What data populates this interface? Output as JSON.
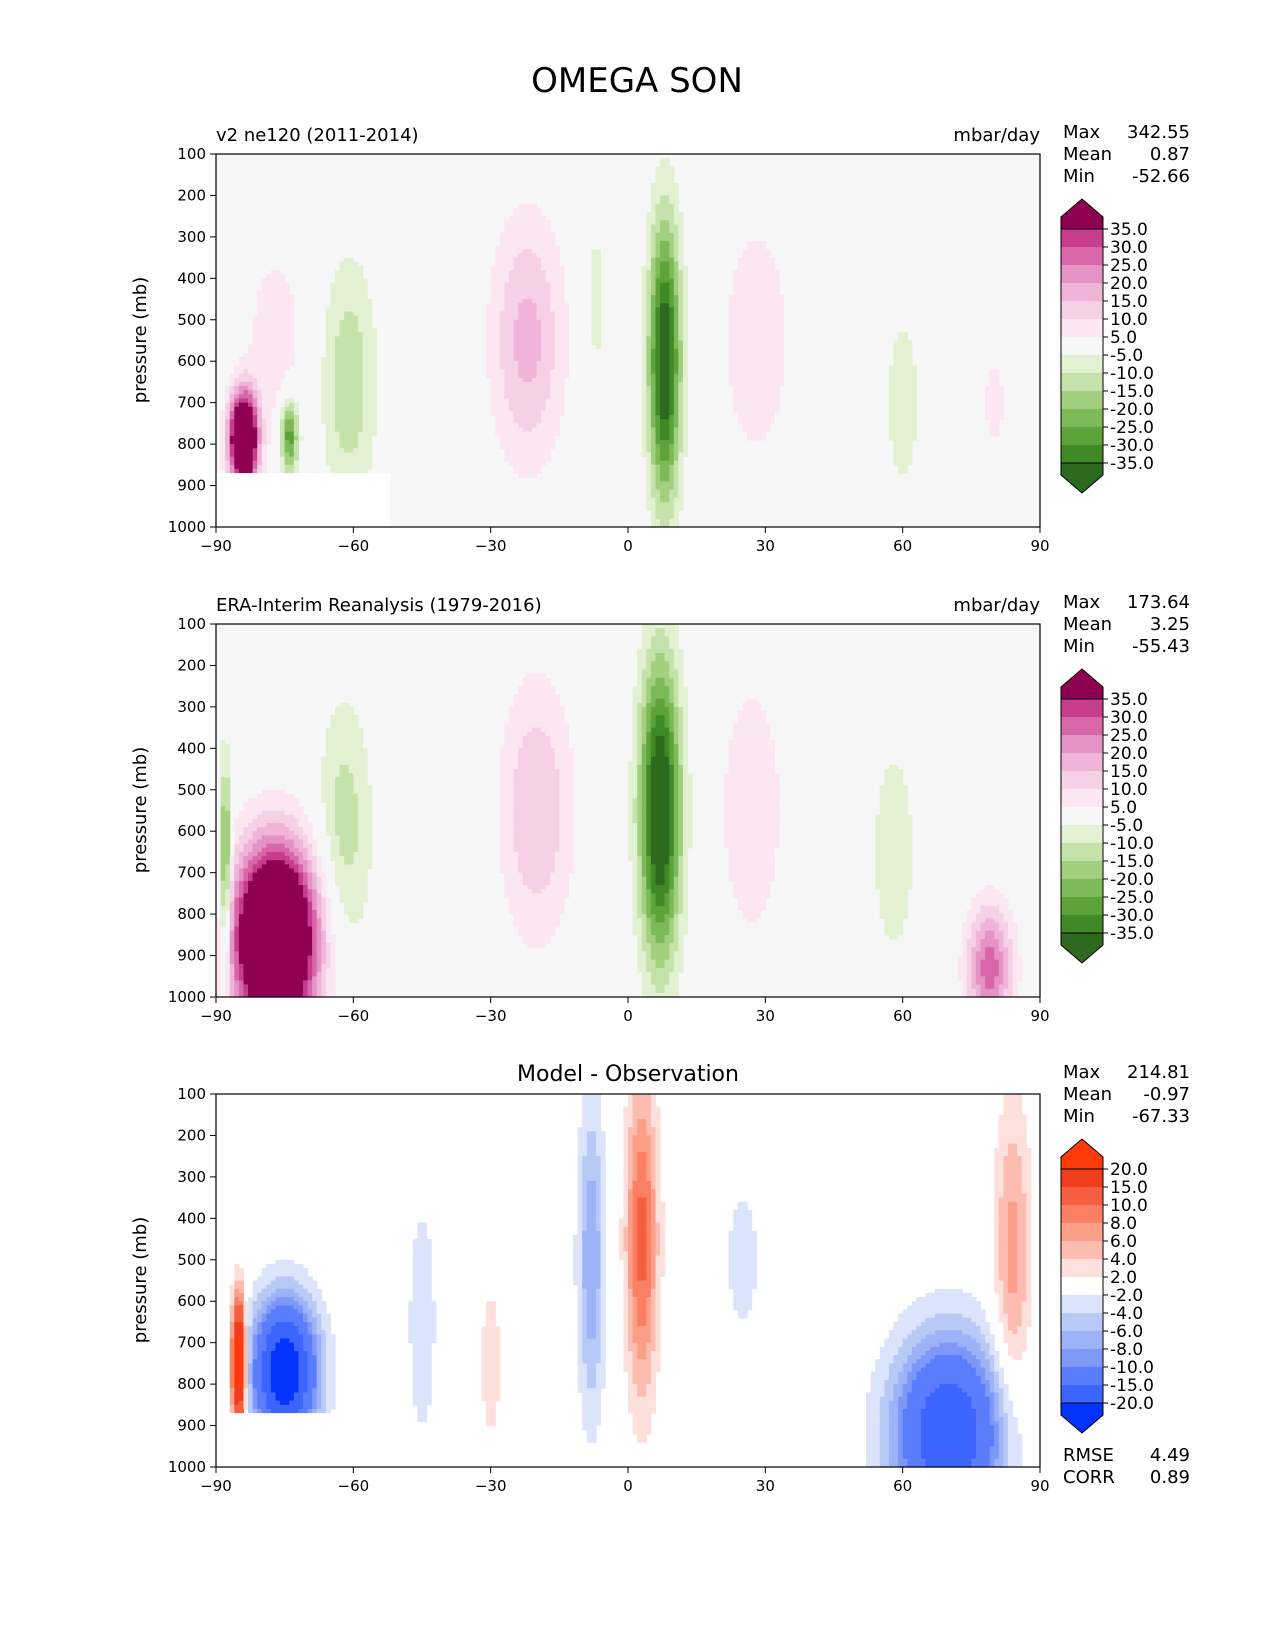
{
  "figure_title": "OMEGA SON",
  "colors": {
    "pink_green": [
      "#2d6a1f",
      "#3f8a27",
      "#5ea33a",
      "#7cb957",
      "#a3d07f",
      "#c4e2a9",
      "#e2f1d2",
      "#f7f7f7",
      "#fbe6f1",
      "#f6d0e6",
      "#efb4d7",
      "#e593c5",
      "#d866a8",
      "#c53d8c",
      "#8e0152"
    ],
    "diff": [
      "#0432fe",
      "#3c64fe",
      "#5a7dfd",
      "#7e98f8",
      "#9eb2f7",
      "#b9c9f6",
      "#dce4fb",
      "#ffffff",
      "#fde0dc",
      "#fcbcaf",
      "#fc9f88",
      "#fa7f63",
      "#f65e40",
      "#f23d1d",
      "#ff3a0a"
    ]
  },
  "chart_data": [
    {
      "type": "contour",
      "id": "model",
      "left_title": "v2 ne120 (2011-2014)",
      "right_title": "mbar/day",
      "ylabel": "pressure (mb)",
      "xlim": [
        -90,
        90
      ],
      "ylim": [
        100,
        1000
      ],
      "x_ticks": [
        "−90",
        "−60",
        "−30",
        "0",
        "30",
        "60",
        "90"
      ],
      "y_ticks": [
        "100",
        "200",
        "300",
        "400",
        "500",
        "600",
        "700",
        "800",
        "900",
        "1000"
      ],
      "stats": [
        {
          "label": "Max",
          "value": "342.55"
        },
        {
          "label": "Mean",
          "value": "0.87"
        },
        {
          "label": "Min",
          "value": "-52.66"
        }
      ],
      "colorbar_labels": [
        "35.0",
        "30.0",
        "25.0",
        "20.0",
        "15.0",
        "10.0",
        "5.0",
        "-5.0",
        "-10.0",
        "-15.0",
        "-20.0",
        "-25.0",
        "-30.0",
        "-35.0"
      ],
      "palette": "pink_green",
      "features": [
        {
          "lat": 8,
          "p": 600,
          "wlat": 3.5,
          "wp": 340,
          "amp": -42
        },
        {
          "lat": -7,
          "p": 450,
          "wlat": 2.0,
          "wp": 180,
          "amp": -9
        },
        {
          "lat": -22,
          "p": 550,
          "wlat": 8,
          "wp": 300,
          "amp": 17
        },
        {
          "lat": 28,
          "p": 550,
          "wlat": 8,
          "wp": 320,
          "amp": 9
        },
        {
          "lat": -61,
          "p": 650,
          "wlat": 6,
          "wp": 300,
          "amp": -14
        },
        {
          "lat": 60,
          "p": 700,
          "wlat": 5,
          "wp": 300,
          "amp": -7
        },
        {
          "lat": 80,
          "p": 700,
          "wlat": 4,
          "wp": 200,
          "amp": 6
        },
        {
          "lat": -77,
          "p": 550,
          "wlat": 7,
          "wp": 250,
          "amp": 8
        },
        {
          "lat": -84,
          "p": 790,
          "wlat": 3,
          "wp": 110,
          "amp": 70
        },
        {
          "lat": -74,
          "p": 780,
          "wlat": 2,
          "wp": 90,
          "amp": -30
        }
      ],
      "mask": {
        "lat_max": -52,
        "p_min": 868
      }
    },
    {
      "type": "contour",
      "id": "obs",
      "left_title": "ERA-Interim Reanalysis (1979-2016)",
      "right_title": "mbar/day",
      "ylabel": "pressure (mb)",
      "xlim": [
        -90,
        90
      ],
      "ylim": [
        100,
        1000
      ],
      "x_ticks": [
        "−90",
        "−60",
        "−30",
        "0",
        "30",
        "60",
        "90"
      ],
      "y_ticks": [
        "100",
        "200",
        "300",
        "400",
        "500",
        "600",
        "700",
        "800",
        "900",
        "1000"
      ],
      "stats": [
        {
          "label": "Max",
          "value": "173.64"
        },
        {
          "label": "Mean",
          "value": "3.25"
        },
        {
          "label": "Min",
          "value": "-55.43"
        }
      ],
      "colorbar_labels": [
        "35.0",
        "30.0",
        "25.0",
        "20.0",
        "15.0",
        "10.0",
        "5.0",
        "-5.0",
        "-10.0",
        "-15.0",
        "-20.0",
        "-25.0",
        "-30.0",
        "-35.0"
      ],
      "palette": "pink_green",
      "features": [
        {
          "lat": 7,
          "p": 550,
          "wlat": 4.5,
          "wp": 360,
          "amp": -45
        },
        {
          "lat": -20,
          "p": 550,
          "wlat": 8,
          "wp": 320,
          "amp": 15
        },
        {
          "lat": 27,
          "p": 550,
          "wlat": 7,
          "wp": 320,
          "amp": 10
        },
        {
          "lat": -62,
          "p": 600,
          "wlat": 6,
          "wp": 320,
          "amp": -13
        },
        {
          "lat": 58,
          "p": 650,
          "wlat": 5,
          "wp": 280,
          "amp": -9
        },
        {
          "lat": 79,
          "p": 930,
          "wlat": 5,
          "wp": 150,
          "amp": 28
        },
        {
          "lat": -77,
          "p": 860,
          "wlat": 9,
          "wp": 220,
          "amp": 75
        },
        {
          "lat": -88,
          "p": 700,
          "wlat": 1.2,
          "wp": 250,
          "amp": -30
        }
      ]
    },
    {
      "type": "contour",
      "id": "diff",
      "center_title": "Model - Observation",
      "ylabel": "pressure (mb)",
      "xlim": [
        -90,
        90
      ],
      "ylim": [
        100,
        1000
      ],
      "x_ticks": [
        "−90",
        "−60",
        "−30",
        "0",
        "30",
        "60",
        "90"
      ],
      "y_ticks": [
        "100",
        "200",
        "300",
        "400",
        "500",
        "600",
        "700",
        "800",
        "900",
        "1000"
      ],
      "stats": [
        {
          "label": "Max",
          "value": "214.81"
        },
        {
          "label": "Mean",
          "value": "-0.97"
        },
        {
          "label": "Min",
          "value": "-67.33"
        }
      ],
      "extra_stats": [
        {
          "label": "RMSE",
          "value": "4.49"
        },
        {
          "label": "CORR",
          "value": "0.89"
        }
      ],
      "colorbar_labels": [
        "20.0",
        "15.0",
        "10.0",
        "8.0",
        "6.0",
        "4.0",
        "2.0",
        "-2.0",
        "-4.0",
        "-6.0",
        "-8.0",
        "-10.0",
        "-15.0",
        "-20.0"
      ],
      "palette": "diff",
      "features": [
        {
          "lat": 3,
          "p": 450,
          "wlat": 3.5,
          "wp": 380,
          "amp": 11
        },
        {
          "lat": -8,
          "p": 500,
          "wlat": 3,
          "wp": 380,
          "amp": -8
        },
        {
          "lat": 70,
          "p": 920,
          "wlat": 12,
          "wp": 230,
          "amp": -20
        },
        {
          "lat": -75,
          "p": 770,
          "wlat": 7,
          "wp": 170,
          "amp": -25
        },
        {
          "lat": 84,
          "p": 500,
          "wlat": 4,
          "wp": 380,
          "amp": 7
        },
        {
          "lat": -45,
          "p": 650,
          "wlat": 4,
          "wp": 380,
          "amp": -3
        },
        {
          "lat": -30,
          "p": 750,
          "wlat": 4,
          "wp": 320,
          "amp": 2.5
        },
        {
          "lat": 25,
          "p": 500,
          "wlat": 6,
          "wp": 300,
          "amp": -2.5
        },
        {
          "lat": -85,
          "p": 750,
          "wlat": 1.5,
          "wp": 150,
          "amp": 30
        }
      ],
      "mask": {
        "lat_max": -52,
        "p_min": 868
      }
    }
  ]
}
